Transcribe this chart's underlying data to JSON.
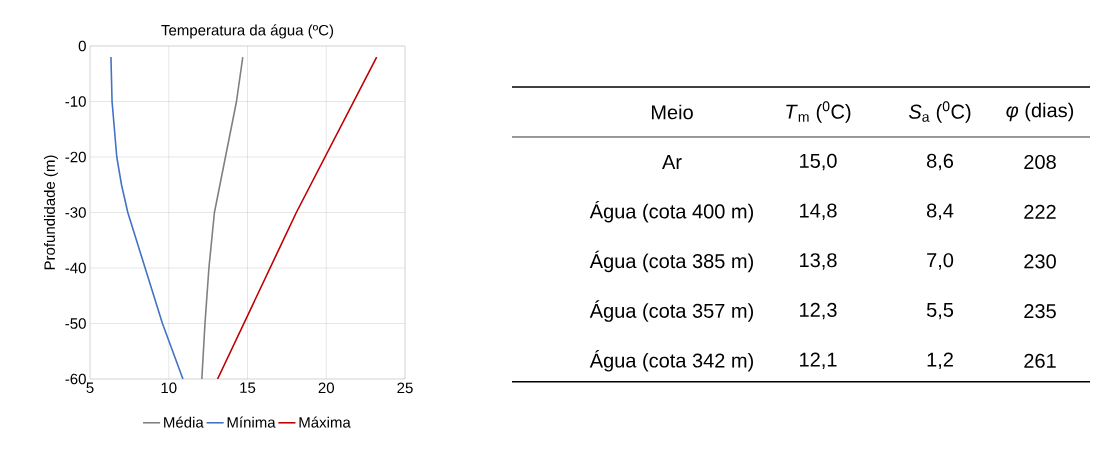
{
  "chart_data": [
    {
      "type": "line",
      "title": "Temperatura da água (ºC)",
      "ylabel": "Profundidade (m)",
      "xlim": [
        5,
        25
      ],
      "xticks": [
        5,
        10,
        15,
        20,
        25
      ],
      "ylim": [
        -60,
        0
      ],
      "yticks": [
        -60,
        -50,
        -40,
        -30,
        -20,
        -10,
        0
      ],
      "grid": true,
      "legend": "bottom",
      "marker": "none",
      "line_style": "solid",
      "series": [
        {
          "name": "Média",
          "color": "#808080",
          "x": [
            14.7,
            14.3,
            13.6,
            12.9,
            12.55,
            12.3,
            12.1
          ],
          "values": [
            -2,
            -10,
            -20,
            -30,
            -40,
            -50,
            -60
          ]
        },
        {
          "name": "Mínima",
          "color": "#4472c4",
          "x": [
            6.33,
            6.4,
            6.7,
            7.0,
            7.4,
            8.5,
            9.6,
            10.9
          ],
          "values": [
            -2,
            -10,
            -20,
            -25,
            -30,
            -40,
            -50,
            -60
          ]
        },
        {
          "name": "Máxima",
          "color": "#c00000",
          "x": [
            23.2,
            18.1,
            13.1
          ],
          "values": [
            -2,
            -30,
            -60
          ]
        }
      ]
    },
    {
      "type": "other",
      "categories": [
        "Meio",
        "*T*$_{m}$ ($^{0}$C)",
        "*S*$_{a}$ ($^{0}$C)",
        "*φ* (dias)"
      ],
      "cell_labels": [
        [
          "Ar",
          "15,0",
          "8,6",
          "208"
        ],
        [
          "Água (cota 400 m)",
          "14,8",
          "8,4",
          "222"
        ],
        [
          "Água (cota 385 m)",
          "13,8",
          "7,0",
          "230"
        ],
        [
          "Água (cota 357 m)",
          "12,3",
          "5,5",
          "235"
        ],
        [
          "Água (cota 342 m)",
          "12,1",
          "1,2",
          "261"
        ]
      ]
    }
  ]
}
